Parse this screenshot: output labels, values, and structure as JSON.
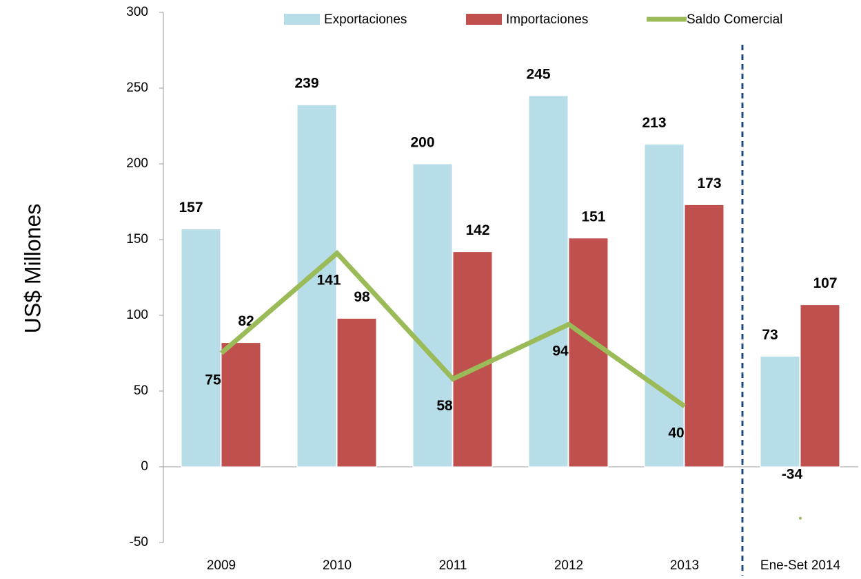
{
  "chart_data": {
    "type": "bar",
    "y_axis_label": "US$ Millones",
    "categories": [
      "2009",
      "2010",
      "2011",
      "2012",
      "2013",
      "Ene-Set 2014"
    ],
    "series": [
      {
        "name": "Exportaciones",
        "color": "#b7dde8",
        "values": [
          157,
          239,
          200,
          245,
          213,
          73
        ]
      },
      {
        "name": "Importaciones",
        "color": "#c0504d",
        "values": [
          82,
          98,
          142,
          151,
          173,
          107
        ]
      },
      {
        "name": "Saldo Comercial",
        "color": "#9bbb59",
        "type": "line",
        "values": [
          75,
          141,
          58,
          94,
          40,
          -34
        ]
      }
    ],
    "ylim": [
      -50,
      300
    ],
    "yticks": [
      -50,
      0,
      50,
      100,
      150,
      200,
      250,
      300
    ],
    "grid": false,
    "legend": "top"
  }
}
